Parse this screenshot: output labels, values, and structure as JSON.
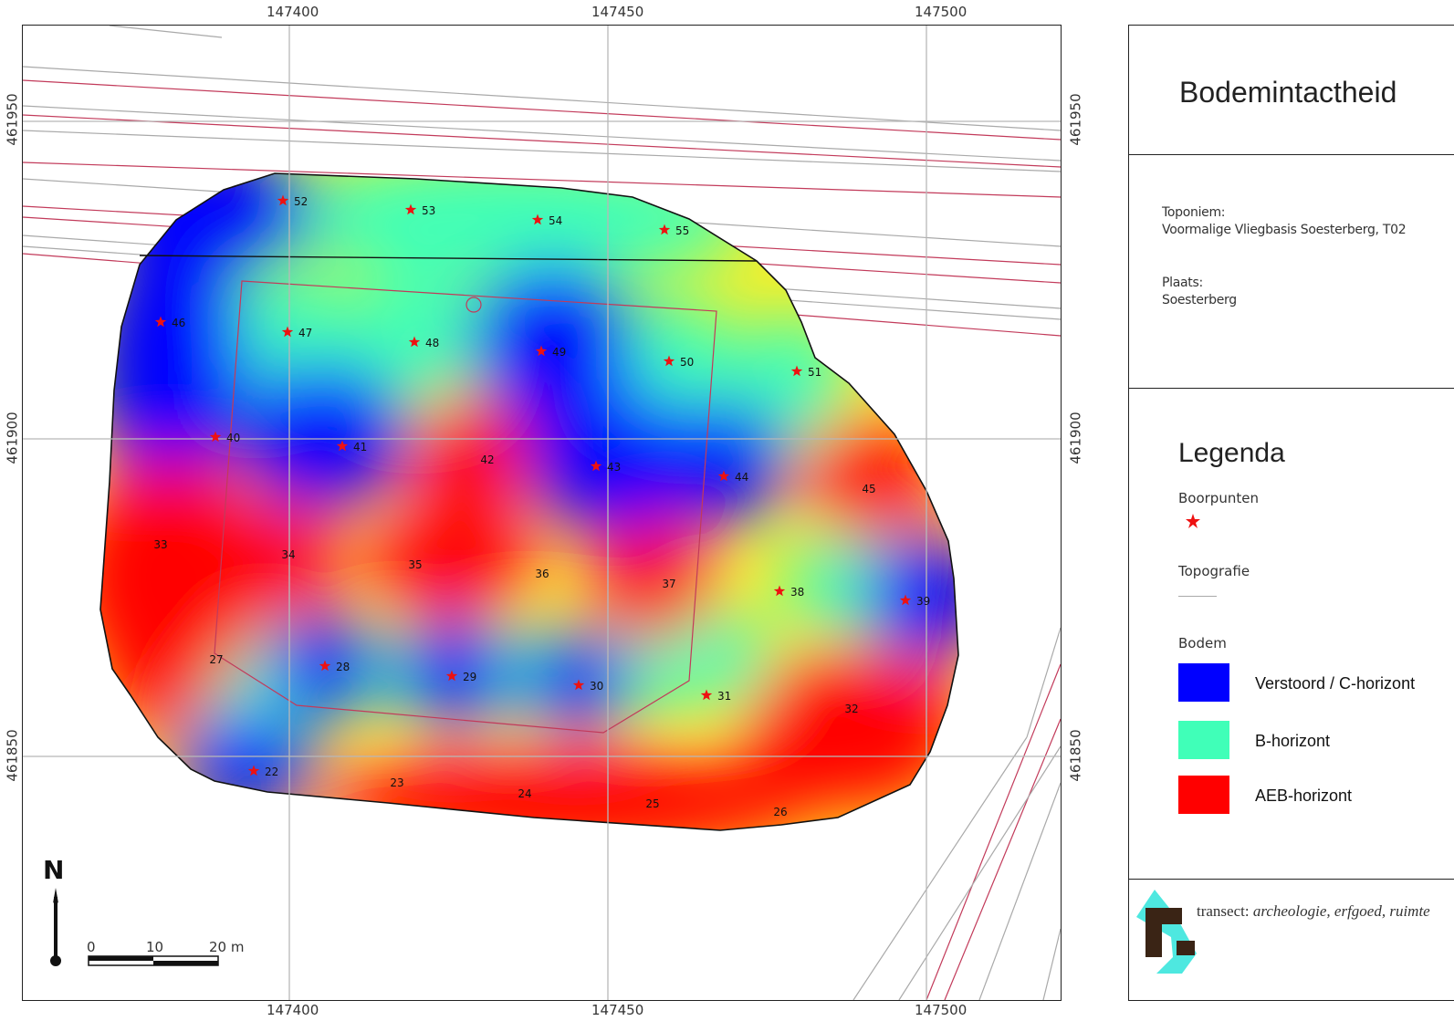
{
  "map": {
    "x_ticks": [
      "147400",
      "147450",
      "147500"
    ],
    "y_ticks": [
      "461950",
      "461900",
      "461850"
    ],
    "north_label": "N",
    "scale_labels": [
      "0",
      "10",
      "20 m"
    ],
    "points": [
      {
        "label": "22",
        "star": true
      },
      {
        "label": "23",
        "star": false
      },
      {
        "label": "24",
        "star": false
      },
      {
        "label": "25",
        "star": false
      },
      {
        "label": "26",
        "star": false
      },
      {
        "label": "27",
        "star": false
      },
      {
        "label": "28",
        "star": true
      },
      {
        "label": "29",
        "star": true
      },
      {
        "label": "30",
        "star": true
      },
      {
        "label": "31",
        "star": true
      },
      {
        "label": "32",
        "star": false
      },
      {
        "label": "33",
        "star": false
      },
      {
        "label": "34",
        "star": false
      },
      {
        "label": "35",
        "star": false
      },
      {
        "label": "36",
        "star": false
      },
      {
        "label": "37",
        "star": false
      },
      {
        "label": "38",
        "star": true
      },
      {
        "label": "39",
        "star": true
      },
      {
        "label": "40",
        "star": true
      },
      {
        "label": "41",
        "star": true
      },
      {
        "label": "42",
        "star": false
      },
      {
        "label": "43",
        "star": true
      },
      {
        "label": "44",
        "star": true
      },
      {
        "label": "45",
        "star": false
      },
      {
        "label": "46",
        "star": true
      },
      {
        "label": "47",
        "star": true
      },
      {
        "label": "48",
        "star": true
      },
      {
        "label": "49",
        "star": true
      },
      {
        "label": "50",
        "star": true
      },
      {
        "label": "51",
        "star": true
      },
      {
        "label": "52",
        "star": true
      },
      {
        "label": "53",
        "star": true
      },
      {
        "label": "54",
        "star": true
      },
      {
        "label": "55",
        "star": true
      }
    ]
  },
  "panel": {
    "title": "Bodemintactheid",
    "toponiem_label": "Toponiem:",
    "toponiem_value": "Voormalige Vliegbasis Soesterberg, T02",
    "plaats_label": "Plaats:",
    "plaats_value": "Soesterberg",
    "legend_title": "Legenda",
    "boorpunten_label": "Boorpunten",
    "topografie_label": "Topografie",
    "bodem_label": "Bodem",
    "classes": [
      {
        "label": "Verstoord / C-horizont",
        "color": "#0000ff"
      },
      {
        "label": "B-horizont",
        "color": "#40ffb8"
      },
      {
        "label": "AEB-horizont",
        "color": "#ff0000"
      }
    ],
    "logo_brand": "transect:",
    "logo_slogan": "archeologie, erfgoed, ruimte"
  },
  "colors": {
    "star": "#ee1111",
    "topo_gray": "#a9a9a9",
    "topo_red": "#c23a5a",
    "logo_dark": "#3a2415",
    "logo_cyan": "#4ee8e0"
  }
}
